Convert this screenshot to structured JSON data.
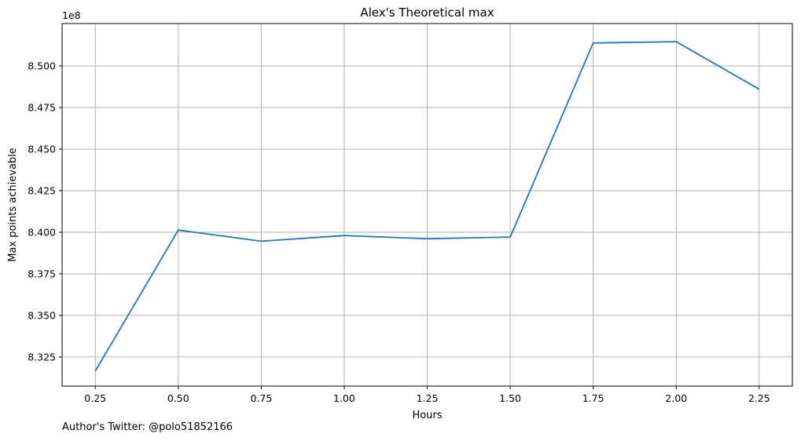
{
  "chart_data": {
    "type": "line",
    "title": "Alex's Theoretical max",
    "xlabel": "Hours",
    "ylabel": "Max points achievable",
    "y_offset_label": "1e8",
    "x": [
      0.25,
      0.5,
      0.75,
      1.0,
      1.25,
      1.5,
      1.75,
      2.0,
      2.25
    ],
    "series": [
      {
        "values": [
          8.3165,
          8.4013,
          8.3946,
          8.398,
          8.3961,
          8.3971,
          8.5138,
          8.5146,
          8.486
        ]
      }
    ],
    "xticks": [
      "0.25",
      "0.50",
      "0.75",
      "1.00",
      "1.25",
      "1.50",
      "1.75",
      "2.00",
      "2.25"
    ],
    "yticks": [
      {
        "value": 8.325,
        "label": "8.325"
      },
      {
        "value": 8.35,
        "label": "8.350"
      },
      {
        "value": 8.375,
        "label": "8.375"
      },
      {
        "value": 8.4,
        "label": "8.400"
      },
      {
        "value": 8.425,
        "label": "8.425"
      },
      {
        "value": 8.45,
        "label": "8.450"
      },
      {
        "value": 8.475,
        "label": "8.475"
      },
      {
        "value": 8.5,
        "label": "8.500"
      }
    ],
    "xlim": [
      0.15,
      2.35
    ],
    "ylim": [
      8.3075,
      8.5255
    ],
    "grid": true,
    "line_color": "#1f77b4",
    "grid_color": "#b0b0b0"
  },
  "footer": {
    "credit": "Author's Twitter: @polo51852166"
  }
}
